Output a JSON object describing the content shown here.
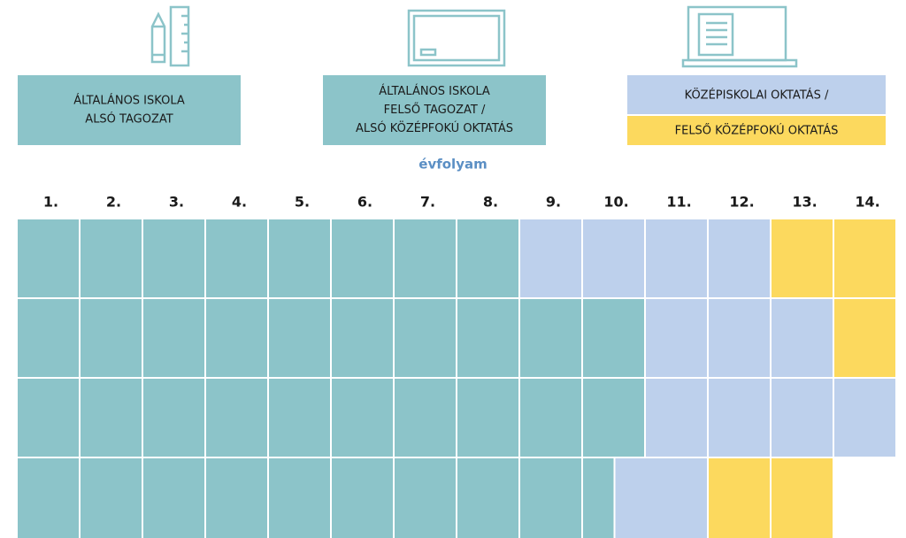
{
  "headers": [
    {
      "lines": [
        "ÁLTALÁNOS ISKOLA",
        "ALSÓ TAGOZAT"
      ],
      "color": "#8cc4c9"
    },
    {
      "lines": [
        "ÁLTALÁNOS ISKOLA",
        "FELSŐ TAGOZAT /",
        "ALSÓ KÖZÉPFOKÚ OKTATÁS"
      ],
      "color": "#8cc4c9"
    },
    {
      "lines": [
        "KÖZÉPISKOLAI OKTATÁS /",
        "FELSŐ KÖZÉPFOKÚ OKTATÁS"
      ],
      "colors": [
        "#bdd0ec",
        "#fcd95e"
      ]
    }
  ],
  "subtitle": "évfolyam",
  "grades": [
    "1.",
    "2.",
    "3.",
    "4.",
    "5.",
    "6.",
    "7.",
    "8.",
    "9.",
    "10.",
    "11.",
    "12.",
    "13.",
    "14."
  ],
  "rows": [
    [
      "#8cc4c9",
      "#8cc4c9",
      "#8cc4c9",
      "#8cc4c9",
      "#8cc4c9",
      "#8cc4c9",
      "#8cc4c9",
      "#8cc4c9",
      "#bdd0ec",
      "#bdd0ec",
      "#bdd0ec",
      "#bdd0ec",
      "#fcd95e",
      "#fcd95e"
    ],
    [
      "#8cc4c9",
      "#8cc4c9",
      "#8cc4c9",
      "#8cc4c9",
      "#8cc4c9",
      "#8cc4c9",
      "#8cc4c9",
      "#8cc4c9",
      "#8cc4c9",
      "#8cc4c9",
      "#bdd0ec",
      "#bdd0ec",
      "#bdd0ec",
      "#fcd95e"
    ],
    [
      "#8cc4c9",
      "#8cc4c9",
      "#8cc4c9",
      "#8cc4c9",
      "#8cc4c9",
      "#8cc4c9",
      "#8cc4c9",
      "#8cc4c9",
      "#8cc4c9",
      "#8cc4c9",
      "#bdd0ec",
      "#bdd0ec",
      "#bdd0ec",
      "#bdd0ec"
    ],
    [
      "#8cc4c9",
      "#8cc4c9",
      "#8cc4c9",
      "#8cc4c9",
      "#8cc4c9",
      "#8cc4c9",
      "#8cc4c9",
      "#8cc4c9",
      "#8cc4c9",
      [
        "#8cc4c9",
        "#bdd0ec"
      ],
      "#bdd0ec",
      "#fcd95e",
      "#fcd95e",
      null
    ]
  ]
}
